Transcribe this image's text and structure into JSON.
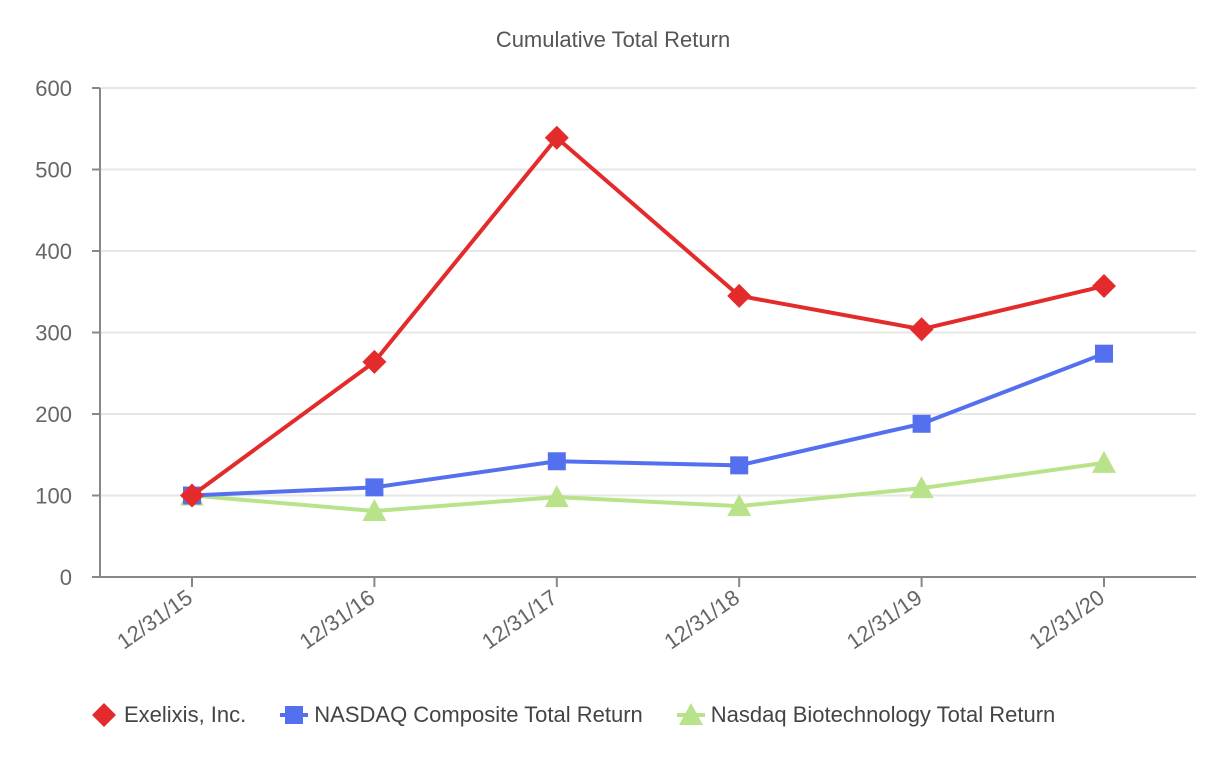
{
  "chart_data": {
    "type": "line",
    "title": "Cumulative Total Return",
    "xlabel": "",
    "ylabel": "",
    "categories": [
      "12/31/15",
      "12/31/16",
      "12/31/17",
      "12/31/18",
      "12/31/19",
      "12/31/20"
    ],
    "ylim": [
      0,
      600
    ],
    "yticks": [
      0,
      100,
      200,
      300,
      400,
      500,
      600
    ],
    "grid": true,
    "legend_position": "bottom",
    "series": [
      {
        "name": "Exelixis, Inc.",
        "values": [
          100,
          264,
          539,
          345,
          304,
          357
        ],
        "color": "#e32b2b",
        "marker": "diamond"
      },
      {
        "name": "NASDAQ Composite Total Return",
        "values": [
          100,
          110,
          142,
          137,
          188,
          274
        ],
        "color": "#5470ee",
        "marker": "square"
      },
      {
        "name": "Nasdaq Biotechnology Total Return",
        "values": [
          100,
          81,
          98,
          87,
          109,
          140
        ],
        "color": "#b9e38a",
        "marker": "triangle"
      }
    ]
  }
}
